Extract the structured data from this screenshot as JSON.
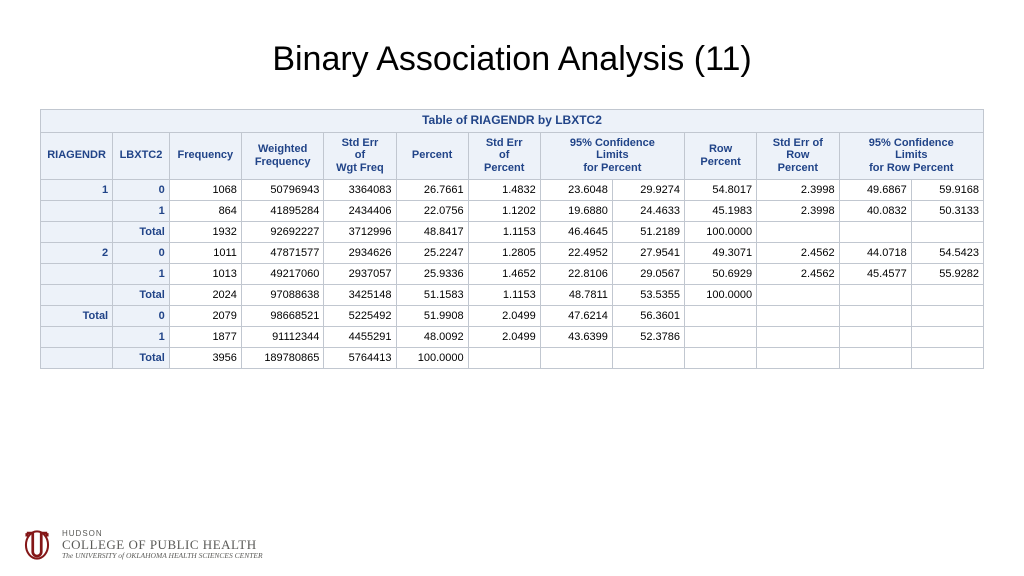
{
  "title": "Binary Association Analysis (11)",
  "table": {
    "caption": "Table of RIAGENDR by LBXTC2",
    "header_color": "#214488",
    "header_bg": "#edf2f9",
    "border_color": "#c1c7d0",
    "columns": [
      "RIAGENDR",
      "LBXTC2",
      "Frequency",
      "Weighted\nFrequency",
      "Std Err\nof\nWgt Freq",
      "Percent",
      "Std Err\nof\nPercent",
      "95% Confidence\nLimits\nfor Percent",
      "Row\nPercent",
      "Std Err of\nRow\nPercent",
      "95% Confidence\nLimits\nfor Row Percent"
    ],
    "col_widths_pct": [
      7,
      5.5,
      7,
      8,
      7,
      7,
      7,
      14,
      7,
      8,
      14
    ],
    "ci_percent_split": [
      7,
      7
    ],
    "ci_row_split": [
      7,
      7
    ],
    "rows": [
      {
        "riagendr": "1",
        "lbxtc2": "0",
        "freq": "1068",
        "wfreq": "50796943",
        "sewf": "3364083",
        "pct": "26.7661",
        "sepct": "1.4832",
        "cilo": "23.6048",
        "cihi": "29.9274",
        "rowpct": "54.8017",
        "serow": "2.3998",
        "rcilo": "49.6867",
        "rcihi": "59.9168"
      },
      {
        "riagendr": "",
        "lbxtc2": "1",
        "freq": "864",
        "wfreq": "41895284",
        "sewf": "2434406",
        "pct": "22.0756",
        "sepct": "1.1202",
        "cilo": "19.6880",
        "cihi": "24.4633",
        "rowpct": "45.1983",
        "serow": "2.3998",
        "rcilo": "40.0832",
        "rcihi": "50.3133"
      },
      {
        "riagendr": "",
        "lbxtc2": "Total",
        "freq": "1932",
        "wfreq": "92692227",
        "sewf": "3712996",
        "pct": "48.8417",
        "sepct": "1.1153",
        "cilo": "46.4645",
        "cihi": "51.2189",
        "rowpct": "100.0000",
        "serow": "",
        "rcilo": "",
        "rcihi": ""
      },
      {
        "riagendr": "2",
        "lbxtc2": "0",
        "freq": "1011",
        "wfreq": "47871577",
        "sewf": "2934626",
        "pct": "25.2247",
        "sepct": "1.2805",
        "cilo": "22.4952",
        "cihi": "27.9541",
        "rowpct": "49.3071",
        "serow": "2.4562",
        "rcilo": "44.0718",
        "rcihi": "54.5423"
      },
      {
        "riagendr": "",
        "lbxtc2": "1",
        "freq": "1013",
        "wfreq": "49217060",
        "sewf": "2937057",
        "pct": "25.9336",
        "sepct": "1.4652",
        "cilo": "22.8106",
        "cihi": "29.0567",
        "rowpct": "50.6929",
        "serow": "2.4562",
        "rcilo": "45.4577",
        "rcihi": "55.9282"
      },
      {
        "riagendr": "",
        "lbxtc2": "Total",
        "freq": "2024",
        "wfreq": "97088638",
        "sewf": "3425148",
        "pct": "51.1583",
        "sepct": "1.1153",
        "cilo": "48.7811",
        "cihi": "53.5355",
        "rowpct": "100.0000",
        "serow": "",
        "rcilo": "",
        "rcihi": ""
      },
      {
        "riagendr": "Total",
        "lbxtc2": "0",
        "freq": "2079",
        "wfreq": "98668521",
        "sewf": "5225492",
        "pct": "51.9908",
        "sepct": "2.0499",
        "cilo": "47.6214",
        "cihi": "56.3601",
        "rowpct": "",
        "serow": "",
        "rcilo": "",
        "rcihi": ""
      },
      {
        "riagendr": "",
        "lbxtc2": "1",
        "freq": "1877",
        "wfreq": "91112344",
        "sewf": "4455291",
        "pct": "48.0092",
        "sepct": "2.0499",
        "cilo": "43.6399",
        "cihi": "52.3786",
        "rowpct": "",
        "serow": "",
        "rcilo": "",
        "rcihi": ""
      },
      {
        "riagendr": "",
        "lbxtc2": "Total",
        "freq": "3956",
        "wfreq": "189780865",
        "sewf": "5764413",
        "pct": "100.0000",
        "sepct": "",
        "cilo": "",
        "cihi": "",
        "rowpct": "",
        "serow": "",
        "rcilo": "",
        "rcihi": ""
      }
    ]
  },
  "footer": {
    "logo_color": "#841617",
    "line1": "HUDSON",
    "line2": "COLLEGE OF PUBLIC HEALTH",
    "line3": "The UNIVERSITY of OKLAHOMA HEALTH SCIENCES CENTER"
  }
}
